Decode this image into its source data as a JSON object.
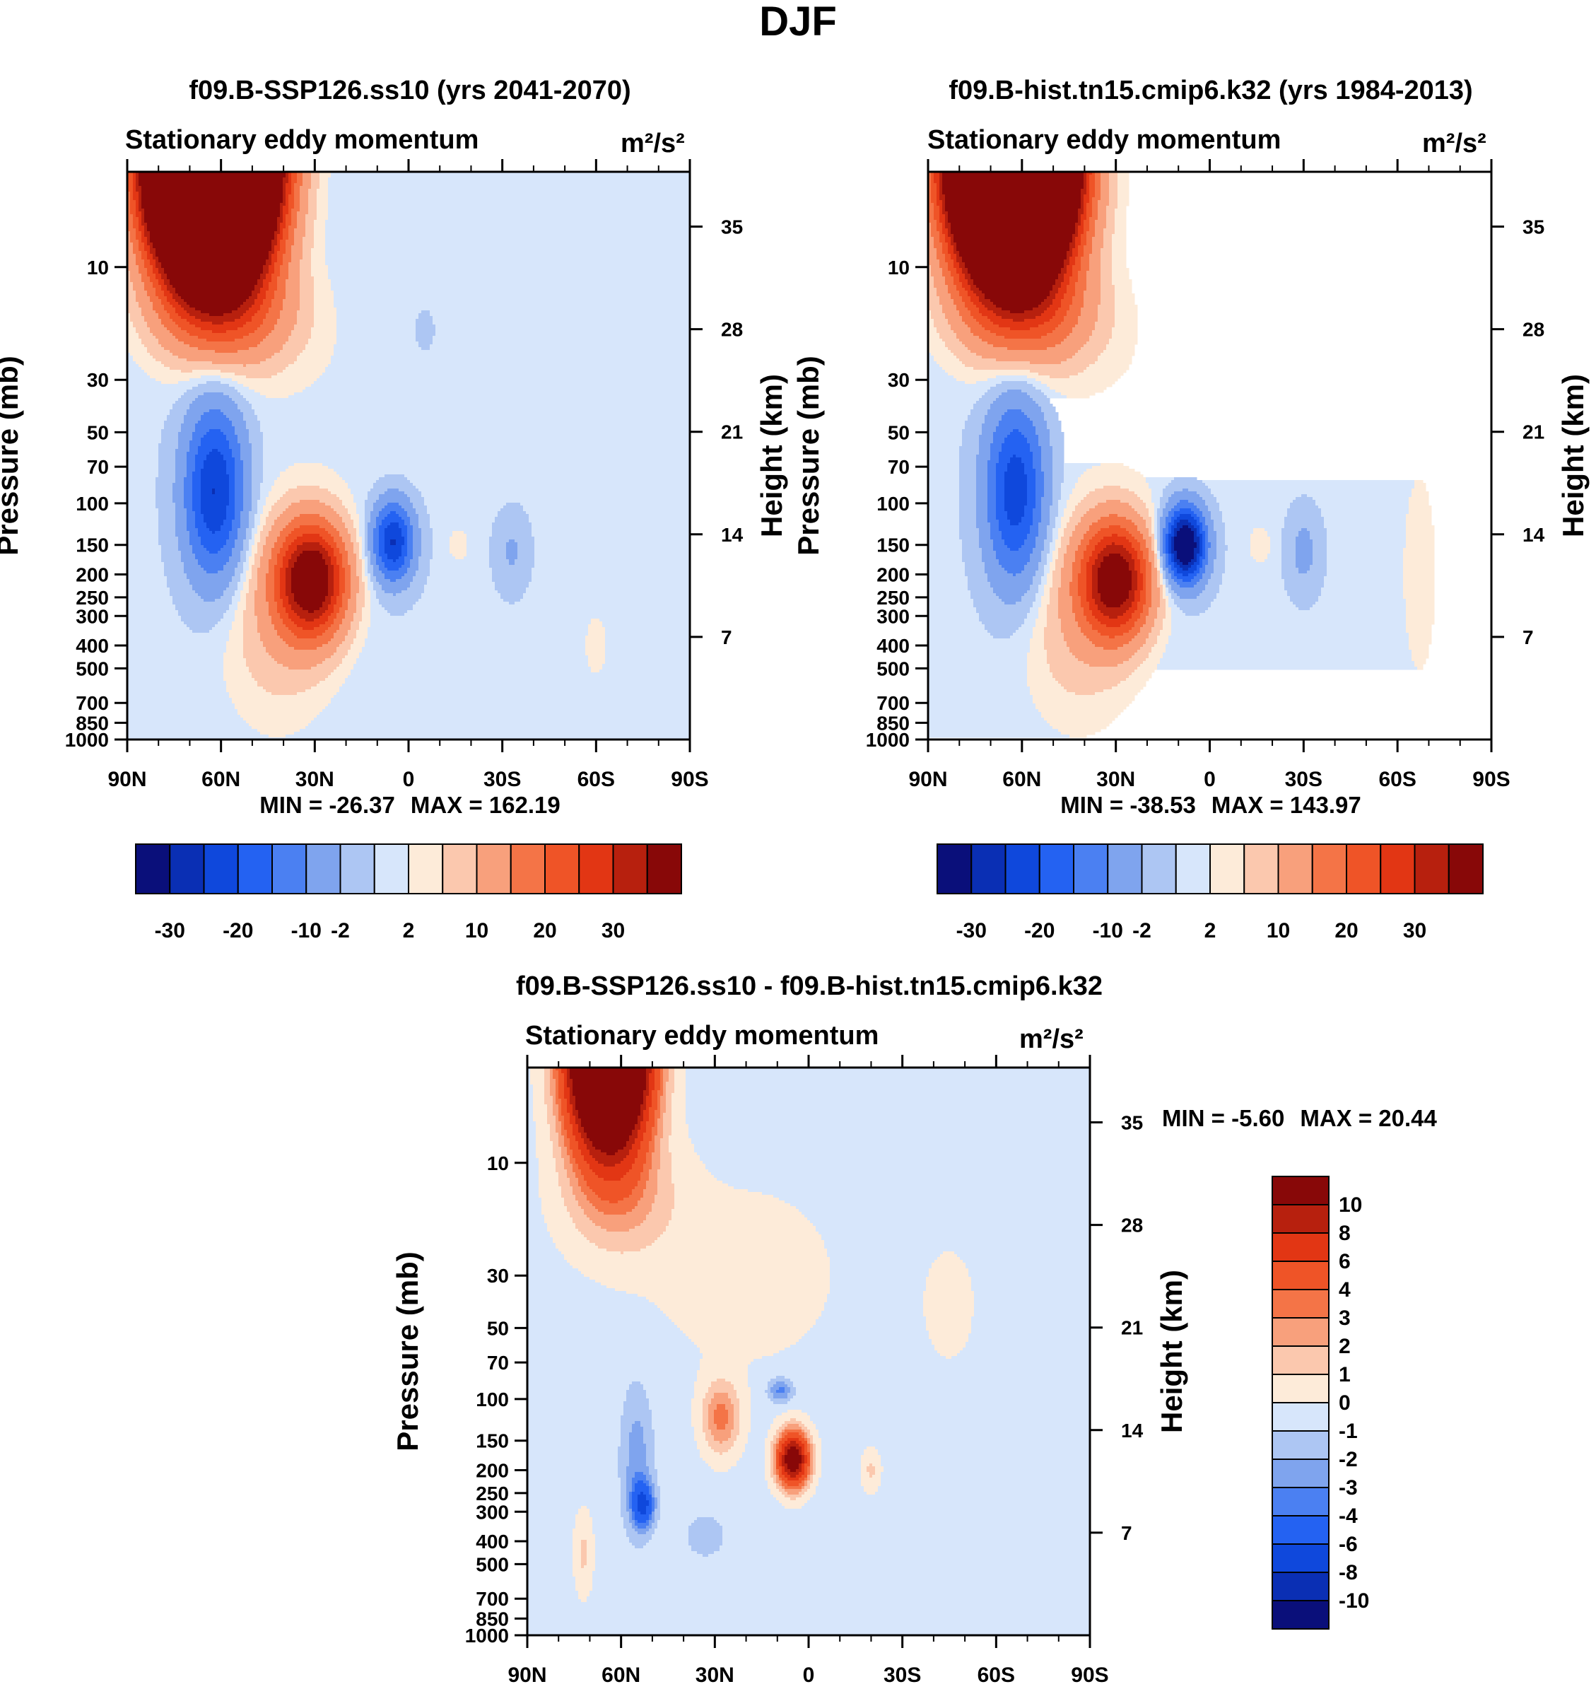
{
  "figure_title": "DJF",
  "colormap": {
    "blues": [
      "#0a0f7a",
      "#0a2fb4",
      "#0f48dc",
      "#2462f2",
      "#4b80f2",
      "#7fa4ee",
      "#adc6f3",
      "#d7e6fb"
    ],
    "reds": [
      "#fdebd9",
      "#fbc8ae",
      "#f8a07c",
      "#f47447",
      "#ef5427",
      "#e23614",
      "#b7200e",
      "#880808"
    ]
  },
  "chart_data": [
    {
      "type": "contour",
      "id": "panel_a",
      "title": "f09.B-SSP126.ss10 (yrs 2041-2070)",
      "subtitle_left": "Stationary eddy momentum",
      "units": "m²/s²",
      "xlabel": "",
      "ylabel": "Pressure (mb)",
      "ylabel_right": "Height (km)",
      "x_ticks": [
        "90N",
        "60N",
        "30N",
        "0",
        "30S",
        "60S",
        "90S"
      ],
      "y_ticks": [
        "10",
        "30",
        "50",
        "70",
        "100",
        "150",
        "200",
        "250",
        "300",
        "400",
        "500",
        "700",
        "850",
        "1000"
      ],
      "y_right_ticks": [
        "35",
        "28",
        "21",
        "14",
        "7"
      ],
      "min_label": "MIN = -26.37",
      "max_label": "MAX = 162.19",
      "min": -26.37,
      "max": 162.19,
      "colorbar_labels": [
        "-30",
        "-20",
        "-10",
        "-2",
        "2",
        "10",
        "20",
        "30"
      ],
      "features": [
        {
          "name": "stratospheric max",
          "lat": 62,
          "p": 8,
          "value": 162.19
        },
        {
          "name": "high-latitude min",
          "lat": 62,
          "p": 80,
          "value": -22
        },
        {
          "name": "subtropical max",
          "lat": 30,
          "p": 200,
          "value": 35
        },
        {
          "name": "tropical min",
          "lat": 5,
          "p": 150,
          "value": -26.37
        },
        {
          "name": "southern min",
          "lat": -33,
          "p": 160,
          "value": -4
        }
      ]
    },
    {
      "type": "contour",
      "id": "panel_b",
      "title": "f09.B-hist.tn15.cmip6.k32 (yrs 1984-2013)",
      "subtitle_left": "Stationary eddy momentum",
      "units": "m²/s²",
      "xlabel": "",
      "ylabel": "Pressure (mb)",
      "ylabel_right": "Height (km)",
      "x_ticks": [
        "90N",
        "60N",
        "30N",
        "0",
        "30S",
        "60S",
        "90S"
      ],
      "y_ticks": [
        "10",
        "30",
        "50",
        "70",
        "100",
        "150",
        "200",
        "250",
        "300",
        "400",
        "500",
        "700",
        "850",
        "1000"
      ],
      "y_right_ticks": [
        "35",
        "28",
        "21",
        "14",
        "7"
      ],
      "min_label": "MIN = -38.53",
      "max_label": "MAX = 143.97",
      "min": -38.53,
      "max": 143.97,
      "colorbar_labels": [
        "-30",
        "-20",
        "-10",
        "-2",
        "2",
        "10",
        "20",
        "30"
      ],
      "features": [
        {
          "name": "stratospheric max",
          "lat": 62,
          "p": 8,
          "value": 143.97
        },
        {
          "name": "high-latitude min",
          "lat": 62,
          "p": 80,
          "value": -20
        },
        {
          "name": "subtropical max",
          "lat": 30,
          "p": 200,
          "value": 34
        },
        {
          "name": "tropical min",
          "lat": 8,
          "p": 150,
          "value": -38.53
        },
        {
          "name": "southern min",
          "lat": -30,
          "p": 160,
          "value": -5
        }
      ]
    },
    {
      "type": "contour",
      "id": "panel_diff",
      "title": "f09.B-SSP126.ss10 - f09.B-hist.tn15.cmip6.k32",
      "subtitle_left": "Stationary eddy momentum",
      "units": "m²/s²",
      "xlabel": "",
      "ylabel": "Pressure (mb)",
      "ylabel_right": "Height (km)",
      "x_ticks": [
        "90N",
        "60N",
        "30N",
        "0",
        "30S",
        "60S",
        "90S"
      ],
      "y_ticks": [
        "10",
        "30",
        "50",
        "70",
        "100",
        "150",
        "200",
        "250",
        "300",
        "400",
        "500",
        "700",
        "850",
        "1000"
      ],
      "y_right_ticks": [
        "35",
        "28",
        "21",
        "14",
        "7"
      ],
      "min_label": "MIN =  -5.60",
      "max_label": "MAX =  20.44",
      "min": -5.6,
      "max": 20.44,
      "colorbar_labels": [
        "10",
        "8",
        "6",
        "4",
        "3",
        "2",
        "1",
        "0",
        "-1",
        "-2",
        "-3",
        "-4",
        "-6",
        "-8",
        "-10"
      ],
      "features": [
        {
          "name": "stratospheric max",
          "lat": 63,
          "p": 7,
          "value": 20.44
        },
        {
          "name": "upper-trop positive",
          "lat": 28,
          "p": 120,
          "value": 3.5
        },
        {
          "name": "tropical positive",
          "lat": 5,
          "p": 180,
          "value": 12
        },
        {
          "name": "tropical negative",
          "lat": 9,
          "p": 95,
          "value": -3
        },
        {
          "name": "high-latitude negative",
          "lat": 53,
          "p": 260,
          "value": -5.6
        }
      ]
    }
  ]
}
